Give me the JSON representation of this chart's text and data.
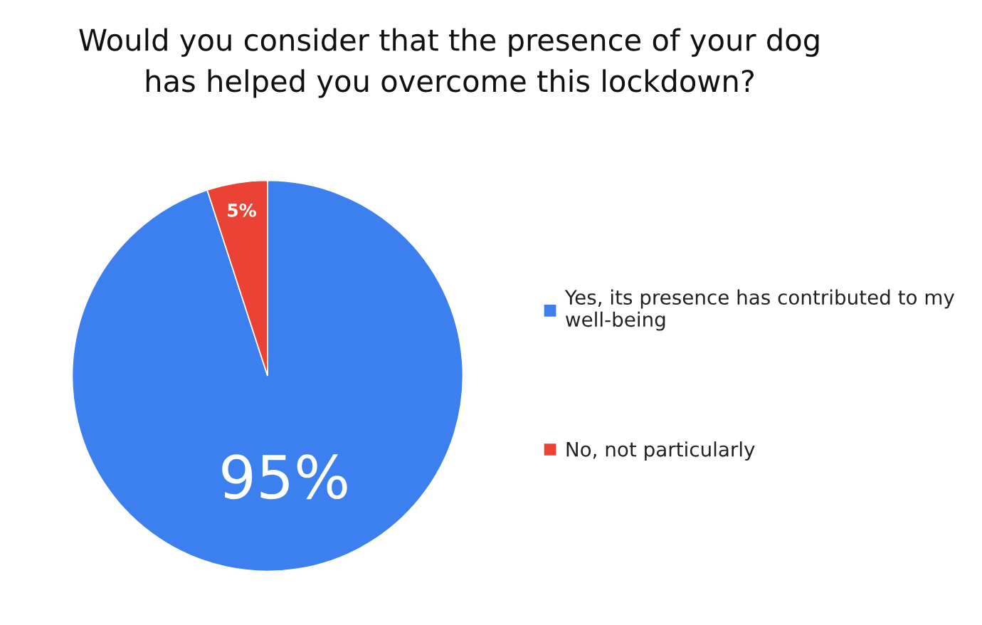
{
  "chart_data": {
    "type": "pie",
    "title": "Would you consider that the presence of your dog has helped you overcome this lockdown?",
    "categories": [
      "Yes, its presence has contributed to my well-being",
      "No, not particularly"
    ],
    "values": [
      95,
      5
    ],
    "colors": [
      "#3c80ef",
      "#ea4335"
    ],
    "value_labels": [
      "95%",
      "5%"
    ],
    "legend": "right"
  }
}
